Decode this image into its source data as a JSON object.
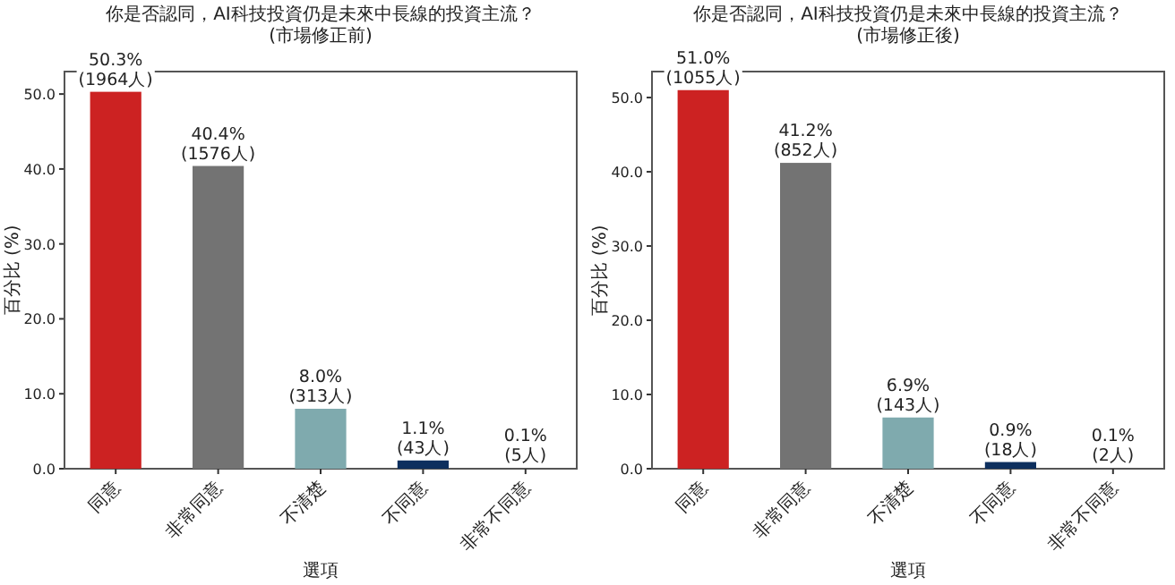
{
  "chart_data": [
    {
      "type": "bar",
      "title": "你是否認同，AI科技投資仍是未來中長線的投資主流？",
      "subtitle": "(市場修正前)",
      "xlabel": "選項",
      "ylabel": "百分比 (%)",
      "categories": [
        "同意",
        "非常同意",
        "不清楚",
        "不同意",
        "非常不同意"
      ],
      "values": [
        50.3,
        40.4,
        8.0,
        1.1,
        0.1
      ],
      "colors": [
        "#cc2222",
        "#737373",
        "#7faaae",
        "#0d2f5e",
        "#555555"
      ],
      "value_labels": [
        "50.3% (1964人)",
        "40.4% (1576人)",
        "8.0% (313人)",
        "1.1% (43人)",
        "0.1% (5人)"
      ],
      "ylim": [
        0,
        53
      ],
      "yticks": [
        {
          "value": 0,
          "label": "0.0"
        },
        {
          "value": 10,
          "label": "10.0"
        },
        {
          "value": 20,
          "label": "20.0"
        },
        {
          "value": 30,
          "label": "30.0"
        },
        {
          "value": 40,
          "label": "40.0"
        },
        {
          "value": 50,
          "label": "50.0"
        }
      ]
    },
    {
      "type": "bar",
      "title": "你是否認同，AI科技投資仍是未來中長線的投資主流？",
      "subtitle": "(市場修正後)",
      "xlabel": "選項",
      "ylabel": "百分比 (%)",
      "categories": [
        "同意",
        "非常同意",
        "不清楚",
        "不同意",
        "非常不同意"
      ],
      "values": [
        51.0,
        41.2,
        6.9,
        0.9,
        0.1
      ],
      "colors": [
        "#cc2222",
        "#737373",
        "#7faaae",
        "#0d2f5e",
        "#555555"
      ],
      "value_labels": [
        "51.0% (1055人)",
        "41.2% (852人)",
        "6.9% (143人)",
        "0.9% (18人)",
        "0.1% (2人)"
      ],
      "ylim": [
        0,
        53.5
      ],
      "yticks": [
        {
          "value": 0,
          "label": "0.0"
        },
        {
          "value": 10,
          "label": "10.0"
        },
        {
          "value": 20,
          "label": "20.0"
        },
        {
          "value": 30,
          "label": "30.0"
        },
        {
          "value": 40,
          "label": "40.0"
        },
        {
          "value": 50,
          "label": "50.0"
        }
      ]
    }
  ]
}
